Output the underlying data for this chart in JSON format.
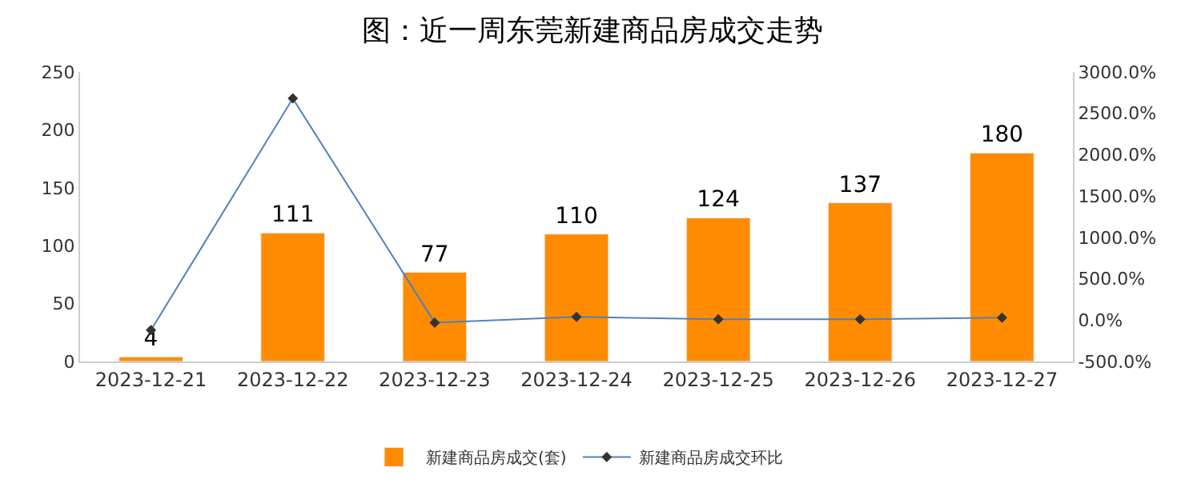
{
  "chart_data": {
    "type": "bar",
    "title": "图：近一周东莞新建商品房成交走势",
    "categories": [
      "2023-12-21",
      "2023-12-22",
      "2023-12-23",
      "2023-12-24",
      "2023-12-25",
      "2023-12-26",
      "2023-12-27"
    ],
    "series": [
      {
        "name": "新建商品房成交(套)",
        "color": "#ff8c00",
        "values": [
          4,
          111,
          77,
          110,
          124,
          137,
          180
        ],
        "data_labels": true
      },
      {
        "name": "新建商品房成交环比",
        "type": "line",
        "axis": "y2",
        "color": "#4f81bd",
        "marker": "diamond",
        "values": [
          -120,
          2680,
          -30,
          40,
          10,
          10,
          30
        ]
      }
    ],
    "ylim": [
      0,
      250
    ],
    "yticks": [
      0,
      50,
      100,
      150,
      200,
      250
    ],
    "y2lim": [
      -500,
      3000
    ],
    "y2ticks": [
      {
        "value": -500,
        "label": "-500.0%"
      },
      {
        "value": 0,
        "label": "0.0%"
      },
      {
        "value": 500,
        "label": "500.0%"
      },
      {
        "value": 1000,
        "label": "1000.0%"
      },
      {
        "value": 1500,
        "label": "1500.0%"
      },
      {
        "value": 2000,
        "label": "2000.0%"
      },
      {
        "value": 2500,
        "label": "2500.0%"
      },
      {
        "value": 3000,
        "label": "3000.0%"
      }
    ],
    "legend": "bottom"
  }
}
